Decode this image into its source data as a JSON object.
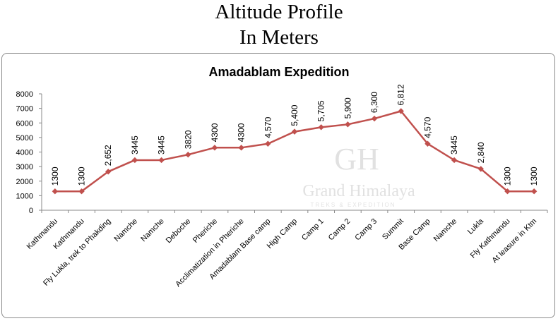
{
  "page": {
    "title_line1": "Altitude Profile",
    "title_line2": "In Meters"
  },
  "watermark": {
    "brand_name": "Grand Himalaya",
    "brand_tagline": "TREKS & EXPEDITION"
  },
  "chart_data": {
    "type": "line",
    "title": "Amadablam Expedition",
    "xlabel": "",
    "ylabel": "",
    "ylim": [
      0,
      8000
    ],
    "yticks": [
      0,
      1000,
      2000,
      3000,
      4000,
      5000,
      6000,
      7000,
      8000
    ],
    "grid": false,
    "legend": "none",
    "line_color": "#c0504d",
    "categories": [
      "Kathmandu",
      "Kathmandu",
      "Fly Lukla, trek to Phakding",
      "Namche",
      "Namche",
      "Deboche",
      "Pheriche",
      "Acclimatization in Pheriche",
      "Amadablam Base camp",
      "High Camp",
      "Camp 1",
      "Camp 2",
      "Camp 3",
      "Summit",
      "Base Camp",
      "Namche",
      "Lukla",
      "Fly Kathmandu",
      "At leasure in Ktm"
    ],
    "values": [
      1300,
      1300,
      2652,
      3445,
      3445,
      3820,
      4300,
      4300,
      4570,
      5400,
      5705,
      5900,
      6300,
      6812,
      4570,
      3445,
      2840,
      1300,
      1300
    ],
    "data_labels": [
      "1300",
      "1300",
      "2,652",
      "3445",
      "3445",
      "3820",
      "4300",
      "4300",
      "4,570",
      "5,400",
      "5,705",
      "5,900",
      "6,300",
      "6,812",
      "4,570",
      "3445",
      "2,840",
      "1300",
      "1300"
    ]
  }
}
